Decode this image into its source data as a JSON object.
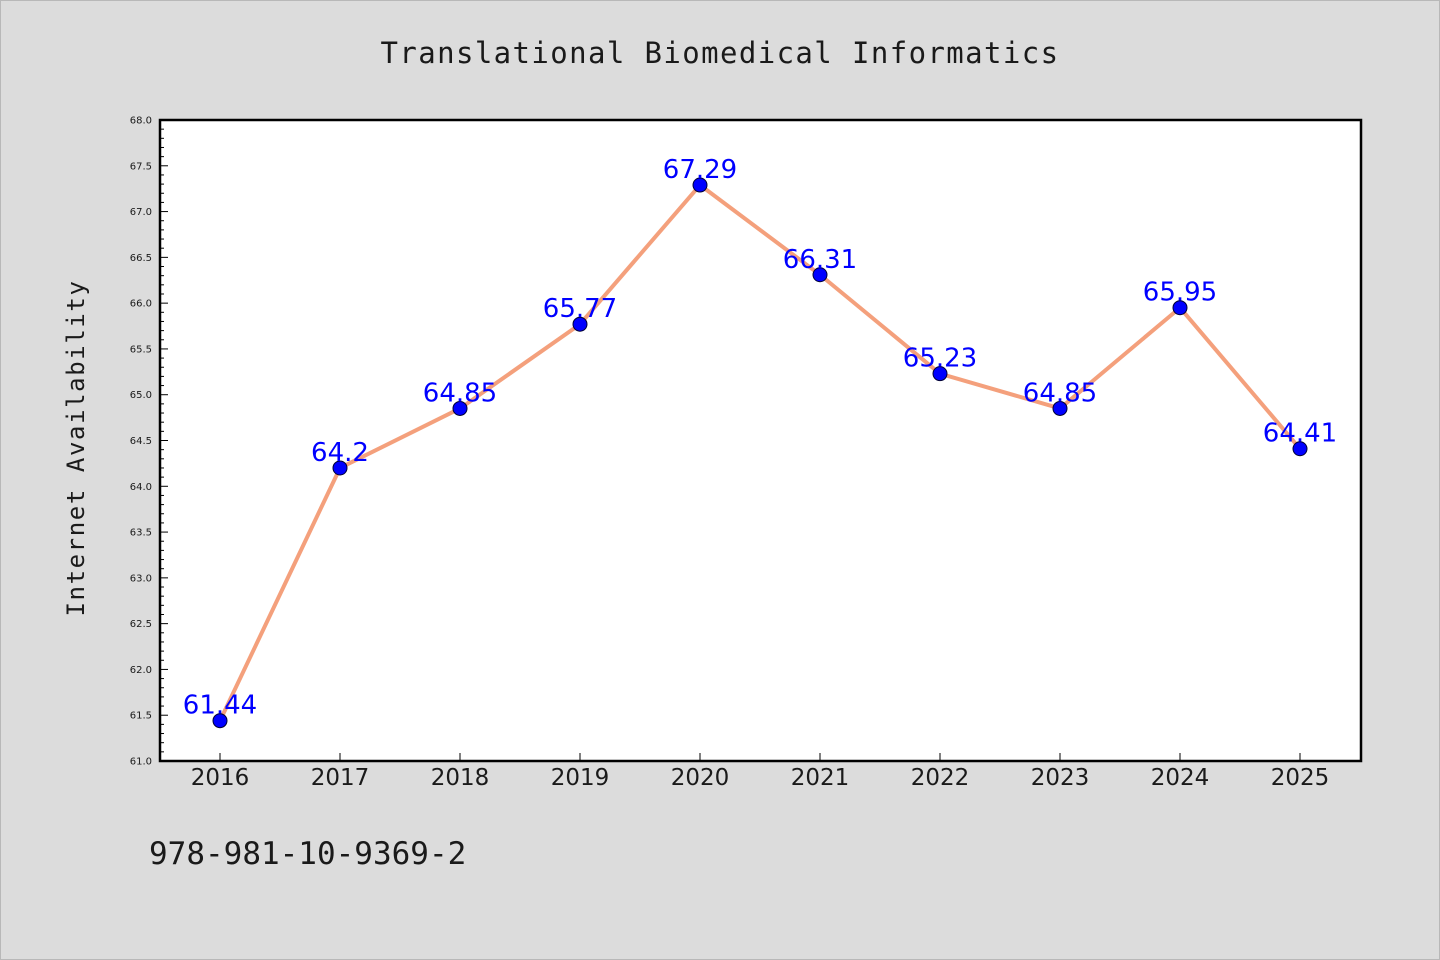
{
  "chart_data": {
    "type": "line",
    "title": "Translational Biomedical Informatics",
    "xlabel": "",
    "ylabel": "Internet Availability",
    "categories": [
      "2016",
      "2017",
      "2018",
      "2019",
      "2020",
      "2021",
      "2022",
      "2023",
      "2024",
      "2025"
    ],
    "series": [
      {
        "values": [
          61.44,
          64.2,
          64.85,
          65.77,
          67.29,
          66.31,
          65.23,
          64.85,
          65.95,
          64.41
        ],
        "line_color": "#f4a07c",
        "marker_color": "#0000ff"
      }
    ],
    "data_labels": [
      "61.44",
      "64.2",
      "64.85",
      "65.77",
      "67.29",
      "66.31",
      "65.23",
      "64.85",
      "65.95",
      "64.41"
    ],
    "ylim": [
      61.0,
      68.0
    ],
    "yticks": [
      "61.0",
      "61.5",
      "62.0",
      "62.5",
      "63.0",
      "63.5",
      "64.0",
      "64.5",
      "65.0",
      "65.5",
      "66.0",
      "66.5",
      "67.0",
      "67.5",
      "68.0"
    ],
    "grid": false,
    "legend": "none"
  },
  "footer": {
    "isbn": "978-981-10-9369-2"
  },
  "colors": {
    "background": "#dcdcdc",
    "plot_background": "#ffffff"
  }
}
